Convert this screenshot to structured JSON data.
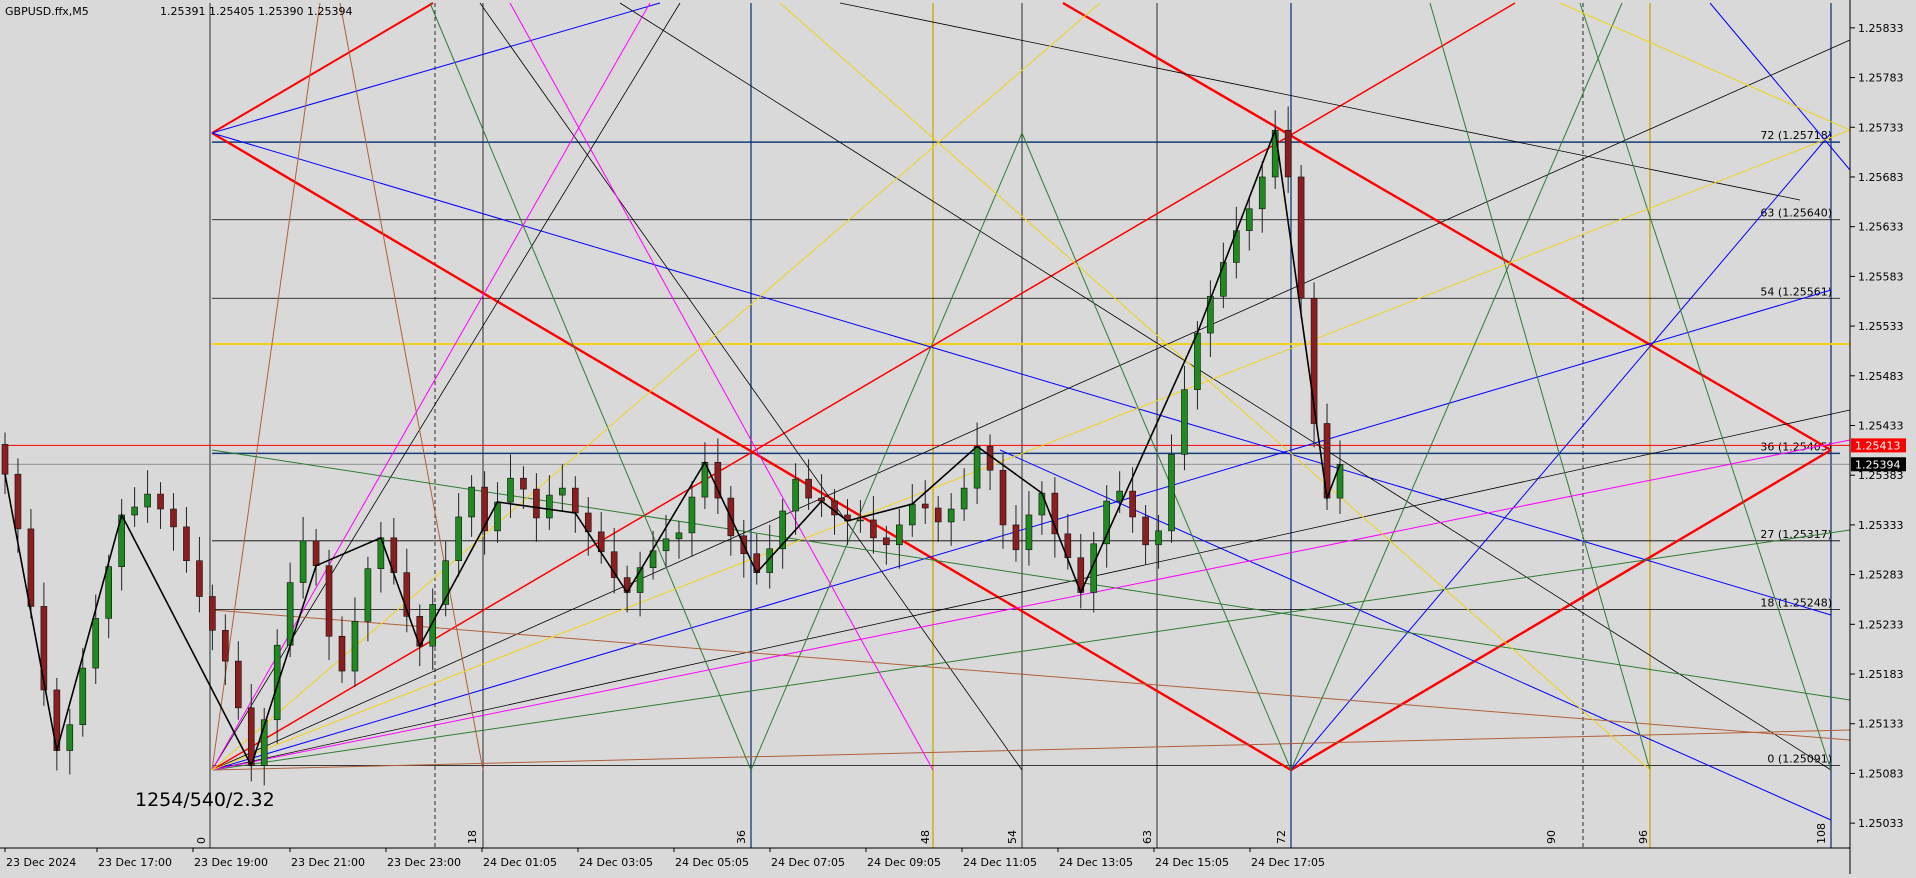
{
  "header": {
    "symbol_label": "GBPUSD.ffx,M5",
    "ohlc_label": "1.25391 1.25405 1.25390 1.25394"
  },
  "annotation": {
    "text": "1254/540/2.32"
  },
  "colors": {
    "background": "#d9d9d9",
    "grid": "#000000",
    "red": "#ff0000",
    "blue": "#0000ff",
    "navy": "#123a7a",
    "green": "#2e7d32",
    "yellow": "#f2d21b",
    "magenta": "#ff00ff",
    "brown": "#b0613a",
    "bull": "#1f8a1f",
    "bear": "#8b1f1f"
  },
  "chart_data": {
    "type": "candlestick",
    "timeframe": "M5",
    "y_axis": {
      "ylim": [
        1.25008,
        1.25858
      ],
      "tick_labels": [
        "1.25833",
        "1.25783",
        "1.25733",
        "1.25683",
        "1.25633",
        "1.25583",
        "1.25533",
        "1.25483",
        "1.25433",
        "1.25383",
        "1.25333",
        "1.25283",
        "1.25233",
        "1.25183",
        "1.25133",
        "1.25083",
        "1.25033"
      ]
    },
    "x_axis": {
      "tick_labels": [
        "23 Dec 2024",
        "23 Dec 17:00",
        "23 Dec 19:00",
        "23 Dec 21:00",
        "23 Dec 23:00",
        "24 Dec 01:05",
        "24 Dec 03:05",
        "24 Dec 05:05",
        "24 Dec 07:05",
        "24 Dec 09:05",
        "24 Dec 11:05",
        "24 Dec 13:05",
        "24 Dec 15:05",
        "24 Dec 17:05"
      ]
    },
    "price_tags": [
      {
        "label": "1.25413",
        "value": 1.25413,
        "color": "#ff0000"
      },
      {
        "label": "1.25394",
        "value": 1.25394,
        "color": "#000000"
      }
    ],
    "levels": [
      {
        "label": "72 (1.25718)",
        "value": 1.25718
      },
      {
        "label": "63 (1.25640)",
        "value": 1.2564
      },
      {
        "label": "54 (1.25561)",
        "value": 1.25561
      },
      {
        "label": "36 (1.25405)",
        "value": 1.25405
      },
      {
        "label": "27 (1.25317)",
        "value": 1.25317
      },
      {
        "label": "18 (1.25248)",
        "value": 1.25248
      },
      {
        "label": "0 (1.25091)",
        "value": 1.25091
      }
    ],
    "gann_numbers": [
      "0",
      "18",
      "36",
      "48",
      "54",
      "63",
      "72",
      "90",
      "96",
      "108"
    ],
    "series": [
      {
        "close": [
          1.25384,
          1.25329,
          1.25251,
          1.25167,
          1.25106,
          1.25132,
          1.25189,
          1.25239,
          1.25291,
          1.25343,
          1.25351,
          1.25364,
          1.25349,
          1.25331,
          1.25297,
          1.25261,
          1.25227,
          1.25196,
          1.25149,
          1.25091,
          1.25137,
          1.25212,
          1.25275,
          1.25317,
          1.25292,
          1.25221,
          1.25186,
          1.25236,
          1.25289,
          1.2532,
          1.25285,
          1.25241,
          1.25211,
          1.25253,
          1.25297,
          1.25341,
          1.25371,
          1.25327,
          1.25356,
          1.2538,
          1.25369,
          1.2534,
          1.25363,
          1.2537,
          1.25345,
          1.25326,
          1.25306,
          1.2528,
          1.25265,
          1.2529,
          1.25307,
          1.25319,
          1.25325,
          1.25361,
          1.25396,
          1.2536,
          1.25322,
          1.25304,
          1.25285,
          1.25309,
          1.25347,
          1.25379,
          1.2536,
          1.25357,
          1.25343,
          1.25337,
          1.25338,
          1.2532,
          1.25313,
          1.25333,
          1.25354,
          1.2535,
          1.25336,
          1.25349,
          1.2537,
          1.25412,
          1.25388,
          1.25333,
          1.25308,
          1.25343,
          1.25365,
          1.25324,
          1.253,
          1.25265,
          1.25314,
          1.25357,
          1.25367,
          1.25341,
          1.25313,
          1.25327,
          1.25404,
          1.25469,
          1.25526,
          1.25563,
          1.25597,
          1.25629,
          1.25651,
          1.25683,
          1.2573,
          1.25683,
          1.25561,
          1.25435,
          1.2536,
          1.25394
        ]
      }
    ]
  }
}
